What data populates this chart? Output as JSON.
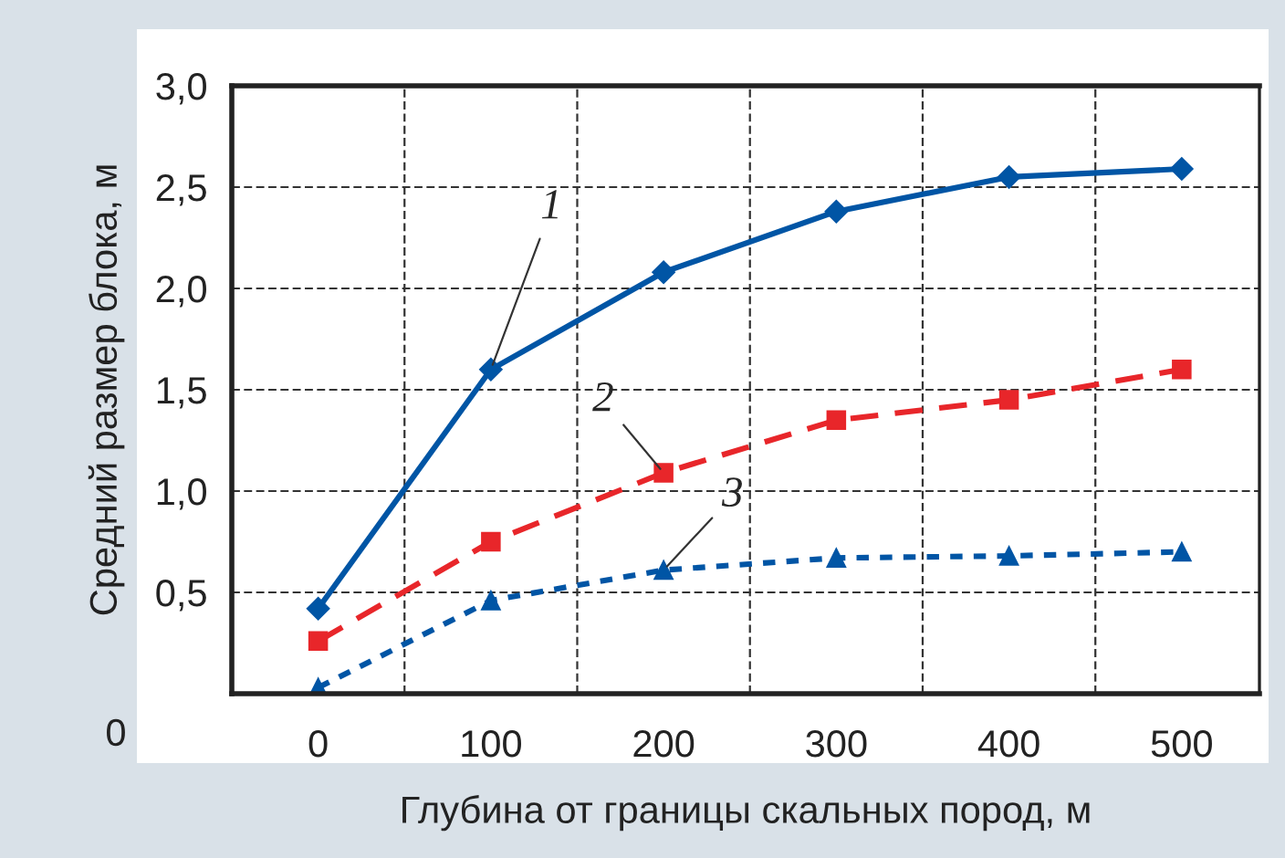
{
  "chart_data": {
    "type": "line",
    "xlabel": "Глубина от границы скальных пород, м",
    "ylabel": "Средний размер блока, м",
    "categories": [
      "0",
      "100",
      "200",
      "300",
      "400",
      "500"
    ],
    "series": [
      {
        "color": "#0055a5",
        "marker": "diamond",
        "line_style": "solid",
        "values": [
          0.42,
          1.6,
          2.08,
          2.38,
          2.55,
          2.59
        ]
      },
      {
        "color": "#e8262a",
        "marker": "square",
        "line_style": "dashed",
        "values": [
          0.26,
          0.75,
          1.09,
          1.35,
          1.45,
          1.6
        ]
      },
      {
        "color": "#0055a5",
        "marker": "triangle",
        "line_style": "dotted",
        "values": [
          0.03,
          0.46,
          0.61,
          0.67,
          0.68,
          0.7
        ]
      }
    ],
    "ylim": [
      0,
      3
    ],
    "yticks": [
      {
        "value": 0.5,
        "label": "0,5"
      },
      {
        "value": 1.0,
        "label": "1,0"
      },
      {
        "value": 1.5,
        "label": "1,5"
      },
      {
        "value": 2.0,
        "label": "2,0"
      },
      {
        "value": 2.5,
        "label": "2,5"
      },
      {
        "value": 3.0,
        "label": "3,0"
      }
    ],
    "grid": true,
    "annotations": [
      {
        "text": "1",
        "x": "100",
        "y": 1.6
      },
      {
        "text": "2",
        "x": "200",
        "y": 1.09
      },
      {
        "text": "3",
        "x": "200",
        "y": 0.61
      },
      "0"
    ]
  }
}
